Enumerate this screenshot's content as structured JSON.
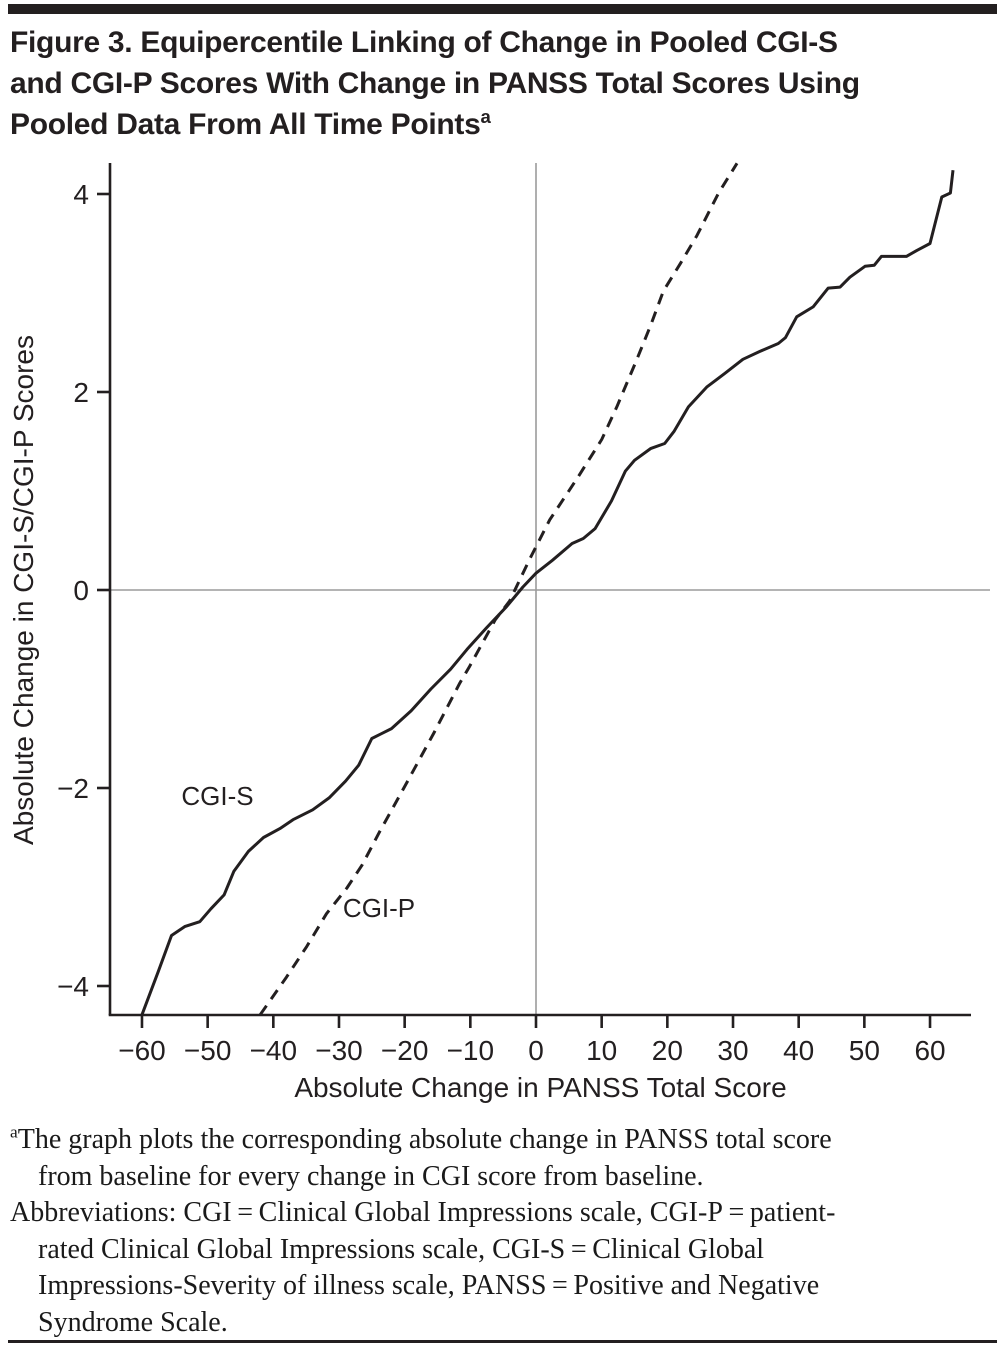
{
  "figure": {
    "title_lines": [
      "Figure 3. Equipercentile Linking of Change in Pooled CGI-S",
      "and CGI-P Scores With Change in PANSS Total Scores Using",
      "Pooled Data From All Time Points"
    ],
    "title_superscript": "a",
    "footnote_lines": [
      {
        "sup": "a",
        "indent": false,
        "text": "The graph plots the corresponding absolute change in PANSS total score"
      },
      {
        "indent": true,
        "text": "from baseline for every change in CGI score from baseline."
      },
      {
        "indent": false,
        "text": "Abbreviations: CGI = Clinical Global Impressions scale, CGI-P = patient-"
      },
      {
        "indent": true,
        "text": "rated Clinical Global Impressions scale, CGI-S = Clinical Global"
      },
      {
        "indent": true,
        "text": "Impressions-Severity of illness scale, PANSS = Positive and Negative"
      },
      {
        "indent": true,
        "text": "Syndrome Scale."
      }
    ]
  },
  "chart_data": {
    "type": "line",
    "title": "Equipercentile linking of change in pooled CGI-S and CGI-P scores with change in PANSS total scores",
    "xlabel": "Absolute Change in PANSS Total Score",
    "ylabel": "Absolute Change in CGI-S/CGI-P Scores",
    "x_ticks": [
      -60,
      -50,
      -40,
      -30,
      -20,
      -10,
      0,
      10,
      20,
      30,
      40,
      50,
      60
    ],
    "y_ticks": [
      -4,
      -2,
      0,
      2,
      4
    ],
    "xlim": [
      -64.9,
      66.2
    ],
    "ylim": [
      -4.29,
      4.31
    ],
    "grid": false,
    "zero_reference_lines": true,
    "legend_position": "inline-curve-labels",
    "colors": {
      "ink": "#231f20",
      "zero_line": "#9b9b9b"
    },
    "series": [
      {
        "name": "CGI-S",
        "style": "solid",
        "label_pos": {
          "x": -48.5,
          "y": -2.08
        },
        "points": [
          [
            -60,
            -4.29
          ],
          [
            -57.5,
            -3.85
          ],
          [
            -55.5,
            -3.49
          ],
          [
            -53.5,
            -3.4
          ],
          [
            -51.2,
            -3.35
          ],
          [
            -49.5,
            -3.22
          ],
          [
            -47.5,
            -3.08
          ],
          [
            -46,
            -2.84
          ],
          [
            -43.8,
            -2.64
          ],
          [
            -41.5,
            -2.5
          ],
          [
            -39,
            -2.41
          ],
          [
            -37,
            -2.32
          ],
          [
            -34,
            -2.22
          ],
          [
            -31.5,
            -2.1
          ],
          [
            -29,
            -1.93
          ],
          [
            -27,
            -1.77
          ],
          [
            -25,
            -1.5
          ],
          [
            -22,
            -1.4
          ],
          [
            -19,
            -1.22
          ],
          [
            -16,
            -1.0
          ],
          [
            -13,
            -0.8
          ],
          [
            -10.5,
            -0.6
          ],
          [
            -7.5,
            -0.38
          ],
          [
            -4.5,
            -0.17
          ],
          [
            -2,
            0.03
          ],
          [
            0,
            0.17
          ],
          [
            2.5,
            0.3
          ],
          [
            5.5,
            0.47
          ],
          [
            7.2,
            0.52
          ],
          [
            9,
            0.62
          ],
          [
            11.5,
            0.9
          ],
          [
            13.6,
            1.2
          ],
          [
            15,
            1.31
          ],
          [
            17.5,
            1.43
          ],
          [
            19.6,
            1.48
          ],
          [
            21,
            1.6
          ],
          [
            23.2,
            1.85
          ],
          [
            26,
            2.05
          ],
          [
            28.8,
            2.19
          ],
          [
            31.5,
            2.33
          ],
          [
            34.1,
            2.41
          ],
          [
            36.9,
            2.49
          ],
          [
            38,
            2.55
          ],
          [
            39.7,
            2.76
          ],
          [
            42.2,
            2.86
          ],
          [
            44.5,
            3.05
          ],
          [
            46.3,
            3.06
          ],
          [
            47.8,
            3.16
          ],
          [
            50.1,
            3.27
          ],
          [
            51.5,
            3.28
          ],
          [
            52.6,
            3.37
          ],
          [
            56.4,
            3.37
          ],
          [
            58,
            3.43
          ],
          [
            60,
            3.5
          ],
          [
            61.8,
            3.97
          ],
          [
            63.1,
            4.01
          ],
          [
            63.5,
            4.24
          ]
        ]
      },
      {
        "name": "CGI-P",
        "style": "dashed",
        "label_pos": {
          "x": -23.9,
          "y": -3.21
        },
        "points": [
          [
            -42,
            -4.29
          ],
          [
            -38,
            -3.91
          ],
          [
            -34.9,
            -3.6
          ],
          [
            -31.9,
            -3.27
          ],
          [
            -28.8,
            -3.01
          ],
          [
            -26.5,
            -2.78
          ],
          [
            -23.8,
            -2.44
          ],
          [
            -19.7,
            -1.95
          ],
          [
            -15.6,
            -1.45
          ],
          [
            -11.6,
            -0.94
          ],
          [
            -10.1,
            -0.77
          ],
          [
            -6.2,
            -0.3
          ],
          [
            -4,
            -0.11
          ],
          [
            -0.9,
            0.32
          ],
          [
            2.1,
            0.71
          ],
          [
            6.4,
            1.14
          ],
          [
            10,
            1.52
          ],
          [
            12.3,
            1.85
          ],
          [
            15.3,
            2.32
          ],
          [
            17.5,
            2.68
          ],
          [
            19.4,
            3.02
          ],
          [
            22,
            3.3
          ],
          [
            24.5,
            3.58
          ],
          [
            27.8,
            4.01
          ],
          [
            30.6,
            4.31
          ]
        ]
      }
    ]
  }
}
